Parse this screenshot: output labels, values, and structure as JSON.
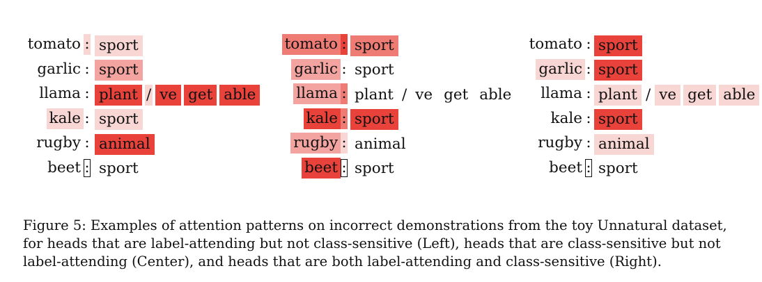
{
  "panels": [
    {
      "id": "left",
      "rows": [
        {
          "word": "tomato",
          "word_level": 0,
          "colon_level": 1,
          "colon_boxed": false,
          "labels": [
            {
              "text": "sport",
              "level": 1
            }
          ]
        },
        {
          "word": "garlic",
          "word_level": 0,
          "colon_level": 0,
          "colon_boxed": false,
          "labels": [
            {
              "text": "sport",
              "level": 2
            }
          ]
        },
        {
          "word": "llama",
          "word_level": 0,
          "colon_level": 0,
          "colon_boxed": false,
          "labels": [
            {
              "text": "plant",
              "level": 4
            },
            {
              "text": "/",
              "level": 1
            },
            {
              "text": "ve",
              "level": 4
            },
            {
              "text": "get",
              "level": 4
            },
            {
              "text": "able",
              "level": 4
            }
          ]
        },
        {
          "word": "kale",
          "word_level": 1,
          "colon_level": 0,
          "colon_boxed": false,
          "labels": [
            {
              "text": "sport",
              "level": 1
            }
          ]
        },
        {
          "word": "rugby",
          "word_level": 0,
          "colon_level": 0,
          "colon_boxed": false,
          "labels": [
            {
              "text": "animal",
              "level": 4
            }
          ]
        },
        {
          "word": "beet",
          "word_level": 0,
          "colon_level": 0,
          "colon_boxed": true,
          "labels": [
            {
              "text": "sport",
              "level": 0
            }
          ]
        }
      ]
    },
    {
      "id": "center",
      "rows": [
        {
          "word": "tomato",
          "word_level": 3,
          "colon_level": 4,
          "colon_boxed": false,
          "labels": [
            {
              "text": "sport",
              "level": 3
            }
          ]
        },
        {
          "word": "garlic",
          "word_level": 2,
          "colon_level": 0,
          "colon_boxed": false,
          "labels": [
            {
              "text": "sport",
              "level": 0
            }
          ]
        },
        {
          "word": "llama",
          "word_level": 2,
          "colon_level": 3,
          "colon_boxed": false,
          "labels": [
            {
              "text": "plant",
              "level": 0
            },
            {
              "text": "/",
              "level": 0
            },
            {
              "text": "ve",
              "level": 0
            },
            {
              "text": "get",
              "level": 0
            },
            {
              "text": "able",
              "level": 0
            }
          ]
        },
        {
          "word": "kale",
          "word_level": 4,
          "colon_level": 3,
          "colon_boxed": false,
          "labels": [
            {
              "text": "sport",
              "level": 4
            }
          ]
        },
        {
          "word": "rugby",
          "word_level": 2,
          "colon_level": 1,
          "colon_boxed": false,
          "labels": [
            {
              "text": "animal",
              "level": 0
            }
          ]
        },
        {
          "word": "beet",
          "word_level": 4,
          "colon_level": 0,
          "colon_boxed": true,
          "labels": [
            {
              "text": "sport",
              "level": 0
            }
          ]
        }
      ]
    },
    {
      "id": "right",
      "rows": [
        {
          "word": "tomato",
          "word_level": 0,
          "colon_level": 0,
          "colon_boxed": false,
          "labels": [
            {
              "text": "sport",
              "level": 4
            }
          ]
        },
        {
          "word": "garlic",
          "word_level": 1,
          "colon_level": 0,
          "colon_boxed": false,
          "labels": [
            {
              "text": "sport",
              "level": 4
            }
          ]
        },
        {
          "word": "llama",
          "word_level": 0,
          "colon_level": 0,
          "colon_boxed": false,
          "labels": [
            {
              "text": "plant",
              "level": 1
            },
            {
              "text": "/",
              "level": 0
            },
            {
              "text": "ve",
              "level": 1
            },
            {
              "text": "get",
              "level": 1
            },
            {
              "text": "able",
              "level": 1
            }
          ]
        },
        {
          "word": "kale",
          "word_level": 0,
          "colon_level": 0,
          "colon_boxed": false,
          "labels": [
            {
              "text": "sport",
              "level": 4
            }
          ]
        },
        {
          "word": "rugby",
          "word_level": 0,
          "colon_level": 0,
          "colon_boxed": false,
          "labels": [
            {
              "text": "animal",
              "level": 1
            }
          ]
        },
        {
          "word": "beet",
          "word_level": 0,
          "colon_level": 0,
          "colon_boxed": true,
          "labels": [
            {
              "text": "sport",
              "level": 0
            }
          ]
        }
      ]
    }
  ],
  "colon_text": ":",
  "caption": "Figure 5: Examples of attention patterns on incorrect demonstrations from the toy Unnatural dataset, for heads that are label-attending but not class-sensitive (Left), heads that are class-sensitive but not label-attending (Center), and heads that are both label-attending and class-sensitive (Right).",
  "colors": {
    "level1": "#f8d6d4",
    "level2": "#f3a4a0",
    "level3": "#ee7b74",
    "level4": "#e8423a"
  }
}
